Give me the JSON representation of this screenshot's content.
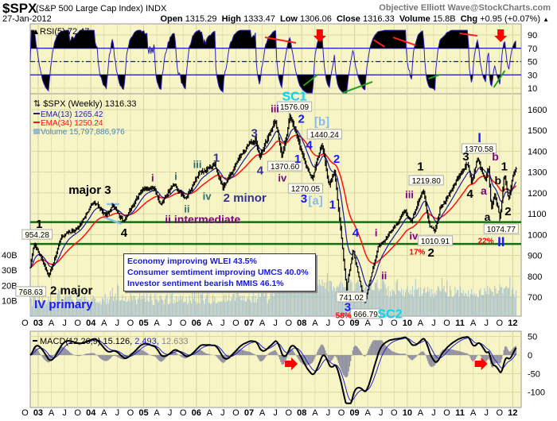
{
  "header": {
    "symbol": "$SPX",
    "name": "(S&P 500 Large Cap Index) INDX",
    "brand": "Objective Elliott Wave@StockCharts.com",
    "date": "27-Jan-2012",
    "open_label": "Open",
    "open": "1315.29",
    "high_label": "High",
    "high": "1333.47",
    "low_label": "Low",
    "low": "1306.06",
    "close_label": "Close",
    "close": "1316.33",
    "volume_label": "Volume",
    "volume": "15.8B",
    "chg_label": "Chg",
    "chg": "+0.95 (+0.07%)",
    "chg_icon": "triangle-up-icon"
  },
  "colors": {
    "panel_bg": "#f7f5c6",
    "grid": "#d9d7a2",
    "ema13": "#1c1ca0",
    "ema34": "#ff1010",
    "volume": "#9cb8cc",
    "green_line": "#107010",
    "rsi": "#3020c0",
    "macd_hist": "#9090a0",
    "arrow": "#ff0000"
  },
  "info_box": [
    "Economy improving WLEI 43.5%",
    "Consumer semtiment improving UMCS 40.0%",
    "Investor sentiment bearish MMIS 46.1%"
  ],
  "chart_data": [
    {
      "type": "line",
      "panel": "RSI",
      "legend": "RSI(5) 72.47",
      "ylim": [
        0,
        100
      ],
      "y_ticks": [
        "10",
        "30",
        "50",
        "70",
        "90"
      ],
      "levels": [
        30,
        50,
        70
      ],
      "trend_lines": [
        {
          "color": "#ff2020",
          "points": [
            [
              2007.3,
              86.4
            ],
            [
              2007.89,
              78.1
            ]
          ]
        },
        {
          "color": "#20a020",
          "points": [
            [
              2008.03,
              13.6
            ],
            [
              2008.3,
              30.3
            ]
          ]
        },
        {
          "color": "#20a020",
          "points": [
            [
              2008.77,
              2.8
            ],
            [
              2009.34,
              19.6
            ]
          ]
        },
        {
          "color": "#ff2020",
          "points": [
            [
              2009.36,
              82.8
            ],
            [
              2009.57,
              72.1
            ]
          ]
        },
        {
          "color": "#ff2020",
          "points": [
            [
              2009.73,
              86.4
            ],
            [
              2010.16,
              74.5
            ]
          ]
        },
        {
          "color": "#20a020",
          "points": [
            [
              2010.4,
              24.3
            ],
            [
              2010.62,
              30.3
            ]
          ]
        },
        {
          "color": "#ff2020",
          "points": [
            [
              2010.99,
              92.4
            ],
            [
              2011.33,
              88.8
            ]
          ]
        },
        {
          "color": "#20a020",
          "points": [
            [
              2011.64,
              11.2
            ],
            [
              2011.85,
              36.3
            ]
          ]
        }
      ],
      "down_arrows": [
        2008.34,
        2011.77
      ]
    },
    {
      "type": "bar",
      "panel": "Price",
      "title": "$SPX (Weekly) 1316.33",
      "legend": [
        "EMA(13) 1265.42",
        "EMA(34) 1250.24",
        "Volume 15,797,886,976"
      ],
      "ylim": [
        608,
        1676
      ],
      "y_ticks": [
        "700",
        "800",
        "900",
        "1000",
        "1100",
        "1200",
        "1300",
        "1400",
        "1500",
        "1600"
      ],
      "volume_ticks": [
        "10B",
        "20B",
        "30B",
        "40B"
      ],
      "xlim": [
        2002.85,
        2012.16
      ],
      "swing_points": [
        [
          2002.8,
          768.63
        ],
        [
          2002.92,
          954.28
        ],
        [
          2003.05,
          900
        ],
        [
          2003.2,
          800
        ],
        [
          2003.45,
          990
        ],
        [
          2003.75,
          1030
        ],
        [
          2004.05,
          1160
        ],
        [
          2004.3,
          1090
        ],
        [
          2004.42,
          1140
        ],
        [
          2004.62,
          1063
        ],
        [
          2004.95,
          1210
        ],
        [
          2005.2,
          1230
        ],
        [
          2005.32,
          1137
        ],
        [
          2005.55,
          1240
        ],
        [
          2005.8,
          1170
        ],
        [
          2006.05,
          1295
        ],
        [
          2006.35,
          1326
        ],
        [
          2006.5,
          1220
        ],
        [
          2006.9,
          1400
        ],
        [
          2007.12,
          1460
        ],
        [
          2007.2,
          1370
        ],
        [
          2007.5,
          1555
        ],
        [
          2007.62,
          1370.6
        ],
        [
          2007.78,
          1576.09
        ],
        [
          2008.05,
          1350
        ],
        [
          2008.2,
          1270.05
        ],
        [
          2008.38,
          1440.24
        ],
        [
          2008.52,
          1230
        ],
        [
          2008.62,
          1310
        ],
        [
          2008.85,
          741.02
        ],
        [
          2008.97,
          930
        ],
        [
          2009.19,
          666.79
        ],
        [
          2009.45,
          945
        ],
        [
          2009.65,
          1000
        ],
        [
          2009.95,
          1120
        ],
        [
          2010.08,
          1060
        ],
        [
          2010.3,
          1219.8
        ],
        [
          2010.42,
          1040
        ],
        [
          2010.52,
          1010.91
        ],
        [
          2010.62,
          1120
        ],
        [
          2011.0,
          1290
        ],
        [
          2011.15,
          1340
        ],
        [
          2011.22,
          1250
        ],
        [
          2011.33,
          1370.58
        ],
        [
          2011.48,
          1260
        ],
        [
          2011.54,
          1330
        ],
        [
          2011.59,
          1120
        ],
        [
          2011.66,
          1200
        ],
        [
          2011.76,
          1074.77
        ],
        [
          2011.84,
          1290
        ],
        [
          2011.92,
          1160
        ],
        [
          2012.0,
          1280
        ],
        [
          2012.07,
          1316.33
        ]
      ],
      "horizontal_lines": [
        1060,
        955
      ],
      "pattern_lines": [
        [
          [
            2004.3,
            1146
          ],
          [
            2004.54,
            1146
          ]
        ],
        [
          [
            2004.23,
            1085
          ],
          [
            2004.58,
            1051
          ]
        ]
      ],
      "annotations": [
        {
          "t": "SC1",
          "d": 2007.86,
          "p": 1665,
          "c": "#00d8f0",
          "s": 16
        },
        {
          "t": "iii",
          "d": 2007.49,
          "p": 1604,
          "c": "#800080",
          "s": 13
        },
        {
          "t": "2",
          "d": 2007.99,
          "p": 1558,
          "c": "#1a1aff",
          "s": 15
        },
        {
          "t": "[b]",
          "d": 2008.38,
          "p": 1543,
          "c": "#88bbee",
          "s": 15
        },
        {
          "t": "3",
          "d": 2007.1,
          "p": 1489,
          "c": "#33338f",
          "s": 15
        },
        {
          "t": "4",
          "d": 2007.21,
          "p": 1310,
          "c": "#33338f",
          "s": 15
        },
        {
          "t": "1",
          "d": 2007.92,
          "p": 1364,
          "c": "#1a1aff",
          "s": 15
        },
        {
          "t": "iv",
          "d": 2007.63,
          "p": 1272,
          "c": "#800080",
          "s": 13
        },
        {
          "t": "4",
          "d": 2008.14,
          "p": 1432,
          "c": "#1a1aff",
          "s": 15
        },
        {
          "t": "3",
          "d": 2008.04,
          "p": 1173,
          "c": "#1a1aff",
          "s": 15
        },
        {
          "t": "[a]",
          "d": 2008.26,
          "p": 1165,
          "c": "#88bbee",
          "s": 15
        },
        {
          "t": "1",
          "d": 2008.58,
          "p": 1146,
          "c": "#1a1aff",
          "s": 15
        },
        {
          "t": "2",
          "d": 2008.66,
          "p": 1364,
          "c": "#1a1aff",
          "s": 15
        },
        {
          "t": "4",
          "d": 2009.02,
          "p": 1009,
          "c": "#1a1aff",
          "s": 15
        },
        {
          "t": "i",
          "d": 2009.41,
          "p": 1009,
          "c": "#800080",
          "s": 13
        },
        {
          "t": "ii",
          "d": 2009.56,
          "p": 803,
          "c": "#800080",
          "s": 13
        },
        {
          "t": "iii",
          "d": 2010.04,
          "p": 1192,
          "c": "#800080",
          "s": 13
        },
        {
          "t": "1",
          "d": 2010.25,
          "p": 1329,
          "c": "#000000",
          "s": 15
        },
        {
          "t": "iv",
          "d": 2010.12,
          "p": 994,
          "c": "#800080",
          "s": 13
        },
        {
          "t": "17%",
          "d": 2010.19,
          "p": 917,
          "c": "#ff0000",
          "s": 10
        },
        {
          "t": "2",
          "d": 2010.45,
          "p": 914,
          "c": "#000000",
          "s": 15
        },
        {
          "t": "3",
          "d": 2011.11,
          "p": 1375,
          "c": "#000000",
          "s": 15
        },
        {
          "t": "I",
          "d": 2011.37,
          "p": 1467,
          "c": "#1a1aff",
          "s": 17
        },
        {
          "t": "b",
          "d": 2011.67,
          "p": 1375,
          "c": "#800080",
          "s": 14
        },
        {
          "t": "4",
          "d": 2011.19,
          "p": 1196,
          "c": "#000000",
          "s": 15
        },
        {
          "t": "a",
          "d": 2011.45,
          "p": 1211,
          "c": "#800080",
          "s": 14
        },
        {
          "t": "b",
          "d": 2011.72,
          "p": 1261,
          "c": "#000000",
          "s": 14
        },
        {
          "t": "1",
          "d": 2011.84,
          "p": 1329,
          "c": "#000000",
          "s": 15
        },
        {
          "t": "a",
          "d": 2011.52,
          "p": 1085,
          "c": "#000000",
          "s": 14
        },
        {
          "t": "2",
          "d": 2011.91,
          "p": 1112,
          "c": "#000000",
          "s": 15
        },
        {
          "t": "22%",
          "d": 2011.49,
          "p": 971,
          "c": "#ff0000",
          "s": 10
        },
        {
          "t": "II",
          "d": 2011.78,
          "p": 967,
          "c": "#1a1aff",
          "s": 17
        },
        {
          "t": "3",
          "d": 2008.87,
          "p": 654,
          "c": "#1a1aff",
          "s": 15
        },
        {
          "t": "58%",
          "d": 2008.79,
          "p": 612,
          "c": "#ff0000",
          "s": 10
        },
        {
          "t": "SC2",
          "d": 2009.67,
          "p": 620,
          "c": "#00d8f0",
          "s": 16
        },
        {
          "t": "1",
          "d": 2003.02,
          "p": 1051,
          "c": "#000000",
          "s": 15
        },
        {
          "t": "major 3",
          "d": 2003.98,
          "p": 1215,
          "c": "#000000",
          "s": 15
        },
        {
          "t": "4",
          "d": 2004.63,
          "p": 1009,
          "c": "#000000",
          "s": 15
        },
        {
          "t": "i",
          "d": 2005.17,
          "p": 1272,
          "c": "#800080",
          "s": 13
        },
        {
          "t": "i",
          "d": 2005.61,
          "p": 1280,
          "c": "#2e6b6b",
          "s": 13
        },
        {
          "t": "iii",
          "d": 2006.02,
          "p": 1337,
          "c": "#2e6b6b",
          "s": 13
        },
        {
          "t": "1",
          "d": 2006.38,
          "p": 1371,
          "c": "#33338f",
          "s": 15
        },
        {
          "t": "iv",
          "d": 2006.2,
          "p": 1184,
          "c": "#2e6b6b",
          "s": 13
        },
        {
          "t": "ii",
          "d": 2005.82,
          "p": 1123,
          "c": "#2e6b6b",
          "s": 13
        },
        {
          "t": "2 minor",
          "d": 2006.92,
          "p": 1177,
          "c": "#33338f",
          "s": 15
        },
        {
          "t": "ii intermediate",
          "d": 2006.12,
          "p": 1074,
          "c": "#800080",
          "s": 14
        },
        {
          "t": "2 major",
          "d": 2003.63,
          "p": 734,
          "c": "#000000",
          "s": 15
        },
        {
          "t": "IV primary",
          "d": 2003.48,
          "p": 666,
          "c": "#1a1aff",
          "s": 15
        }
      ],
      "price_labels": [
        {
          "t": "1576.09",
          "d": 2007.86,
          "p": 1615
        },
        {
          "t": "1440.24",
          "d": 2008.43,
          "p": 1482
        },
        {
          "t": "1370.60",
          "d": 2007.68,
          "p": 1329
        },
        {
          "t": "1270.05",
          "d": 2008.07,
          "p": 1222
        },
        {
          "t": "1219.80",
          "d": 2010.36,
          "p": 1261
        },
        {
          "t": "1010.91",
          "d": 2010.53,
          "p": 971
        },
        {
          "t": "1370.58",
          "d": 2011.36,
          "p": 1413
        },
        {
          "t": "1074.77",
          "d": 2011.78,
          "p": 1028
        },
        {
          "t": "741.02",
          "d": 2008.94,
          "p": 700
        },
        {
          "t": "666.79",
          "d": 2009.21,
          "p": 620
        },
        {
          "t": "954.28",
          "d": 2002.98,
          "p": 1001
        },
        {
          "t": "768.63",
          "d": 2002.86,
          "p": 727
        }
      ]
    },
    {
      "type": "line",
      "panel": "MACD",
      "legend": {
        "name": "MACD(12,26,9)",
        "macd": "15.126",
        "signal": "2.493",
        "hist": "12.633"
      },
      "ylim": [
        -135,
        60
      ],
      "y_ticks": [
        "50",
        "0",
        "-50",
        "-100"
      ],
      "right_arrows": [
        2007.8,
        2011.4
      ]
    }
  ],
  "x_axis": {
    "start": 2002.75,
    "step": 0.25,
    "labels": [
      "O",
      "03",
      "A",
      "J",
      "O",
      "04",
      "A",
      "J",
      "O",
      "05",
      "A",
      "J",
      "O",
      "06",
      "A",
      "J",
      "O",
      "07",
      "A",
      "J",
      "O",
      "08",
      "A",
      "J",
      "O",
      "09",
      "A",
      "J",
      "O",
      "10",
      "A",
      "J",
      "O",
      "11",
      "A",
      "J",
      "O",
      "12"
    ]
  }
}
